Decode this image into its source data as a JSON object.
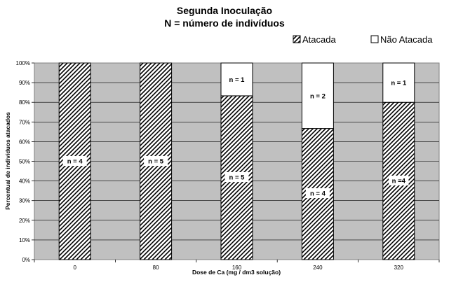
{
  "chart_data": {
    "type": "bar",
    "stacked": true,
    "percent": true,
    "title": [
      "Segunda Inoculação",
      "N = número de indivíduos"
    ],
    "xlabel": "Dose de Ca (mg / dm3 solução)",
    "ylabel": "Percentual de indivíduos atacados",
    "ylim": [
      0,
      100
    ],
    "yticks": [
      "0%",
      "10%",
      "20%",
      "30%",
      "40%",
      "50%",
      "60%",
      "70%",
      "80%",
      "90%",
      "100%"
    ],
    "categories": [
      "0",
      "80",
      "160",
      "240",
      "320"
    ],
    "series": [
      {
        "name": "Atacada",
        "fill": "hatch",
        "values": [
          100,
          100,
          83.3,
          66.7,
          80
        ],
        "labels": [
          "n = 4",
          "n = 5",
          "n = 5",
          "n = 4",
          "n =4"
        ]
      },
      {
        "name": "Não Atacada",
        "fill": "#ffffff",
        "values": [
          0,
          0,
          16.7,
          33.3,
          20
        ],
        "labels": [
          "",
          "",
          "n = 1",
          "n = 2",
          "n = 1"
        ]
      }
    ],
    "legend_position": "top-right",
    "plot_background": "#c0c0c0",
    "grid": true
  }
}
